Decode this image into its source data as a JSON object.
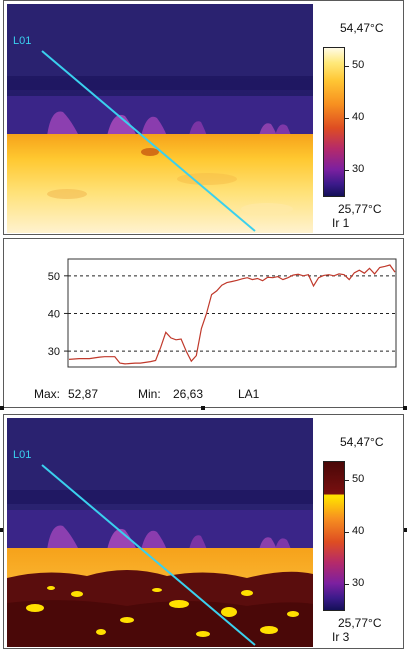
{
  "ir1": {
    "name": "Ir 1",
    "line_label": "L01",
    "scale_max": "54,47°C",
    "scale_min": "25,77°C",
    "ticks": [
      "50",
      "40",
      "30"
    ]
  },
  "ir3": {
    "name": "Ir 3",
    "line_label": "L01",
    "scale_max": "54,47°C",
    "scale_min": "25,77°C",
    "ticks": [
      "50",
      "40",
      "30"
    ]
  },
  "stats": {
    "max_label": "Max:",
    "max_value": "52,87",
    "min_label": "Min:",
    "min_value": "26,63",
    "area_name": "LA1"
  },
  "colors": {
    "line": "#3ad0ee",
    "profile": "#c0392b",
    "isotherm": "#ffe000"
  },
  "chart_data": {
    "type": "line",
    "ylim": [
      25.77,
      54.47
    ],
    "yticks": [
      30,
      40,
      50
    ],
    "grid": "dashed horizontal at ticks",
    "series": [
      {
        "values": [
          27.8,
          27.9,
          28.0,
          28.0,
          28.0,
          28.2,
          28.4,
          28.5,
          28.5,
          28.5,
          26.8,
          26.6,
          26.7,
          26.8,
          26.8,
          27.0,
          27.2,
          27.5,
          31.0,
          35.0,
          33.5,
          33.0,
          33.2,
          30.0,
          27.3,
          28.8,
          36.0,
          40.0,
          45.0,
          46.0,
          47.5,
          48.2,
          48.5,
          48.8,
          49.2,
          49.5,
          49.0,
          49.3,
          48.7,
          49.6,
          49.5,
          49.8,
          49.0,
          49.5,
          50.2,
          50.4,
          50.0,
          50.3,
          47.3,
          49.5,
          50.1,
          50.3,
          50.0,
          50.5,
          50.3,
          49.0,
          50.8,
          51.5,
          50.7,
          52.0,
          50.5,
          52.2,
          52.5,
          52.87,
          51.0
        ]
      }
    ]
  }
}
